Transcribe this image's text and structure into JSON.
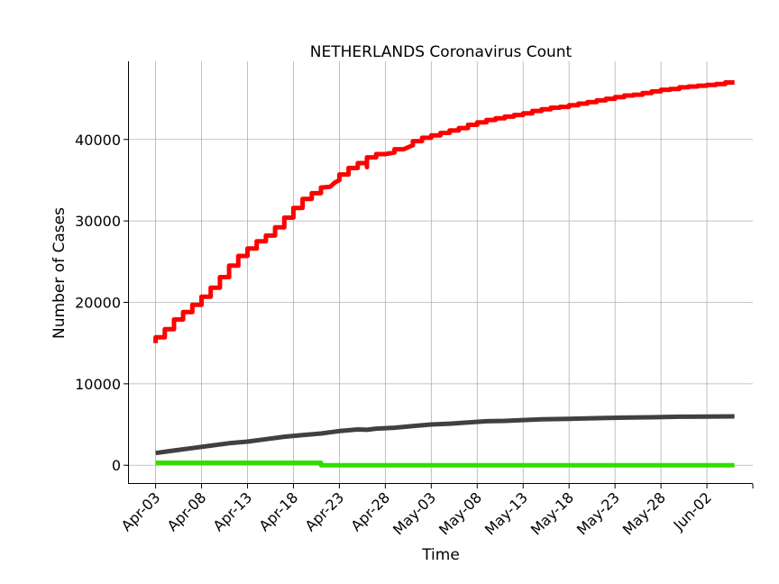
{
  "chart_data": {
    "type": "line",
    "title": "NETHERLANDS Coronavirus Count",
    "xlabel": "Time",
    "ylabel": "Number of Cases",
    "x_ticks": [
      "Apr-03",
      "Apr-08",
      "Apr-13",
      "Apr-18",
      "Apr-23",
      "Apr-28",
      "May-03",
      "May-08",
      "May-13",
      "May-18",
      "May-23",
      "May-28",
      "Jun-02"
    ],
    "y_ticks": [
      0,
      10000,
      20000,
      30000,
      40000
    ],
    "xlim": [
      "2020-03-31",
      "2020-06-07"
    ],
    "ylim": [
      -2300,
      49600
    ],
    "grid": true,
    "series": [
      {
        "color": "#ff0000",
        "points": [
          [
            "2020-04-03",
            15000
          ],
          [
            "2020-04-03",
            15700
          ],
          [
            "2020-04-04",
            15700
          ],
          [
            "2020-04-04",
            16700
          ],
          [
            "2020-04-05",
            16700
          ],
          [
            "2020-04-05",
            17900
          ],
          [
            "2020-04-06",
            17900
          ],
          [
            "2020-04-06",
            18800
          ],
          [
            "2020-04-07",
            18800
          ],
          [
            "2020-04-07",
            19700
          ],
          [
            "2020-04-08",
            19700
          ],
          [
            "2020-04-08",
            20700
          ],
          [
            "2020-04-09",
            20700
          ],
          [
            "2020-04-09",
            21800
          ],
          [
            "2020-04-10",
            21800
          ],
          [
            "2020-04-10",
            23100
          ],
          [
            "2020-04-11",
            23100
          ],
          [
            "2020-04-11",
            24500
          ],
          [
            "2020-04-12",
            24500
          ],
          [
            "2020-04-12",
            25700
          ],
          [
            "2020-04-13",
            25700
          ],
          [
            "2020-04-13",
            26600
          ],
          [
            "2020-04-14",
            26600
          ],
          [
            "2020-04-14",
            27500
          ],
          [
            "2020-04-15",
            27500
          ],
          [
            "2020-04-15",
            28200
          ],
          [
            "2020-04-16",
            28200
          ],
          [
            "2020-04-16",
            29200
          ],
          [
            "2020-04-17",
            29200
          ],
          [
            "2020-04-17",
            30400
          ],
          [
            "2020-04-18",
            30400
          ],
          [
            "2020-04-18",
            31600
          ],
          [
            "2020-04-19",
            31600
          ],
          [
            "2020-04-19",
            32700
          ],
          [
            "2020-04-20",
            32700
          ],
          [
            "2020-04-20",
            33400
          ],
          [
            "2020-04-21",
            33400
          ],
          [
            "2020-04-21",
            34100
          ],
          [
            "2020-04-22",
            34200
          ],
          [
            "2020-04-22.5",
            34700
          ],
          [
            "2020-04-23",
            35000
          ],
          [
            "2020-04-23",
            35700
          ],
          [
            "2020-04-24",
            35700
          ],
          [
            "2020-04-24",
            36500
          ],
          [
            "2020-04-25",
            36500
          ],
          [
            "2020-04-25",
            37100
          ],
          [
            "2020-04-26",
            37100
          ],
          [
            "2020-04-26",
            36600
          ],
          [
            "2020-04-26",
            37800
          ],
          [
            "2020-04-27",
            37800
          ],
          [
            "2020-04-27",
            38200
          ],
          [
            "2020-04-28",
            38200
          ],
          [
            "2020-04-29",
            38400
          ],
          [
            "2020-04-29",
            38800
          ],
          [
            "2020-04-30",
            38800
          ],
          [
            "2020-05-01",
            39300
          ],
          [
            "2020-05-01",
            39800
          ],
          [
            "2020-05-02",
            39800
          ],
          [
            "2020-05-02",
            40200
          ],
          [
            "2020-05-03",
            40200
          ],
          [
            "2020-05-03",
            40500
          ],
          [
            "2020-05-04",
            40500
          ],
          [
            "2020-05-04",
            40800
          ],
          [
            "2020-05-05",
            40800
          ],
          [
            "2020-05-05",
            41100
          ],
          [
            "2020-05-06",
            41100
          ],
          [
            "2020-05-06",
            41400
          ],
          [
            "2020-05-07",
            41400
          ],
          [
            "2020-05-07",
            41800
          ],
          [
            "2020-05-08",
            41800
          ],
          [
            "2020-05-08",
            42100
          ],
          [
            "2020-05-09",
            42100
          ],
          [
            "2020-05-09",
            42400
          ],
          [
            "2020-05-10",
            42400
          ],
          [
            "2020-05-10",
            42600
          ],
          [
            "2020-05-11",
            42600
          ],
          [
            "2020-05-11",
            42800
          ],
          [
            "2020-05-12",
            42800
          ],
          [
            "2020-05-12",
            43000
          ],
          [
            "2020-05-13",
            43000
          ],
          [
            "2020-05-13",
            43200
          ],
          [
            "2020-05-14",
            43200
          ],
          [
            "2020-05-14",
            43500
          ],
          [
            "2020-05-15",
            43500
          ],
          [
            "2020-05-15",
            43700
          ],
          [
            "2020-05-16",
            43700
          ],
          [
            "2020-05-16",
            43900
          ],
          [
            "2020-05-17",
            43900
          ],
          [
            "2020-05-17",
            44000
          ],
          [
            "2020-05-18",
            44000
          ],
          [
            "2020-05-18",
            44200
          ],
          [
            "2020-05-19",
            44200
          ],
          [
            "2020-05-19",
            44400
          ],
          [
            "2020-05-20",
            44400
          ],
          [
            "2020-05-20",
            44600
          ],
          [
            "2020-05-21",
            44600
          ],
          [
            "2020-05-21",
            44800
          ],
          [
            "2020-05-22",
            44800
          ],
          [
            "2020-05-22",
            45000
          ],
          [
            "2020-05-23",
            45000
          ],
          [
            "2020-05-23",
            45200
          ],
          [
            "2020-05-24",
            45200
          ],
          [
            "2020-05-24",
            45400
          ],
          [
            "2020-05-25",
            45400
          ],
          [
            "2020-05-25",
            45500
          ],
          [
            "2020-05-26",
            45500
          ],
          [
            "2020-05-26",
            45700
          ],
          [
            "2020-05-27",
            45700
          ],
          [
            "2020-05-27",
            45900
          ],
          [
            "2020-05-28",
            45900
          ],
          [
            "2020-05-28",
            46100
          ],
          [
            "2020-05-29",
            46100
          ],
          [
            "2020-05-29",
            46200
          ],
          [
            "2020-05-30",
            46200
          ],
          [
            "2020-05-30",
            46400
          ],
          [
            "2020-05-31",
            46400
          ],
          [
            "2020-05-31",
            46500
          ],
          [
            "2020-06-01",
            46500
          ],
          [
            "2020-06-01",
            46600
          ],
          [
            "2020-06-02",
            46600
          ],
          [
            "2020-06-02",
            46700
          ],
          [
            "2020-06-03",
            46700
          ],
          [
            "2020-06-03",
            46800
          ],
          [
            "2020-06-04",
            46800
          ],
          [
            "2020-06-04",
            47000
          ],
          [
            "2020-06-05",
            47000
          ]
        ]
      },
      {
        "color": "#404040",
        "points": [
          [
            "2020-04-03",
            1500
          ],
          [
            "2020-04-05",
            1800
          ],
          [
            "2020-04-07",
            2100
          ],
          [
            "2020-04-09",
            2400
          ],
          [
            "2020-04-11",
            2700
          ],
          [
            "2020-04-13",
            2900
          ],
          [
            "2020-04-15",
            3200
          ],
          [
            "2020-04-17",
            3500
          ],
          [
            "2020-04-19",
            3700
          ],
          [
            "2020-04-21",
            3900
          ],
          [
            "2020-04-23",
            4200
          ],
          [
            "2020-04-25",
            4400
          ],
          [
            "2020-04-26",
            4350
          ],
          [
            "2020-04-27",
            4500
          ],
          [
            "2020-04-29",
            4600
          ],
          [
            "2020-05-01",
            4800
          ],
          [
            "2020-05-03",
            5000
          ],
          [
            "2020-05-05",
            5100
          ],
          [
            "2020-05-07",
            5250
          ],
          [
            "2020-05-09",
            5400
          ],
          [
            "2020-05-11",
            5450
          ],
          [
            "2020-05-13",
            5550
          ],
          [
            "2020-05-15",
            5650
          ],
          [
            "2020-05-18",
            5700
          ],
          [
            "2020-05-21",
            5780
          ],
          [
            "2020-05-24",
            5840
          ],
          [
            "2020-05-27",
            5890
          ],
          [
            "2020-05-30",
            5950
          ],
          [
            "2020-06-02",
            5980
          ],
          [
            "2020-06-05",
            6000
          ]
        ]
      },
      {
        "color": "#33dd00",
        "points": [
          [
            "2020-04-03",
            300
          ],
          [
            "2020-04-21",
            300
          ],
          [
            "2020-04-21",
            0
          ],
          [
            "2020-06-05",
            0
          ]
        ]
      }
    ]
  }
}
